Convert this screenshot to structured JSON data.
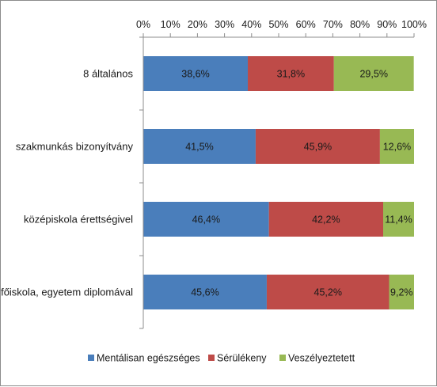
{
  "chart_data": {
    "type": "bar",
    "orientation": "horizontal",
    "stacked": "percent",
    "title": "",
    "xlabel": "",
    "ylabel": "",
    "xlim": [
      0,
      100
    ],
    "x_ticks": [
      "0%",
      "10%",
      "20%",
      "30%",
      "40%",
      "50%",
      "60%",
      "70%",
      "80%",
      "90%",
      "100%"
    ],
    "x_axis_position": "top",
    "grid": false,
    "legend_position": "bottom",
    "categories": [
      "8 általános",
      "szakmunkás bizonyítvány",
      "középiskola érettségivel",
      "főiskola, egyetem diplomával"
    ],
    "series": [
      {
        "name": "Mentálisan egészséges",
        "color": "#4a7ebb",
        "values": [
          38.6,
          41.5,
          46.4,
          45.6
        ],
        "labels": [
          "38,6%",
          "41,5%",
          "46,4%",
          "45,6%"
        ]
      },
      {
        "name": "Sérülékeny",
        "color": "#be4b48",
        "values": [
          31.8,
          45.9,
          42.2,
          45.2
        ],
        "labels": [
          "31,8%",
          "45,9%",
          "42,2%",
          "45,2%"
        ]
      },
      {
        "name": "Veszélyeztetett",
        "color": "#98b954",
        "values": [
          29.5,
          12.6,
          11.4,
          9.2
        ],
        "labels": [
          "29,5%",
          "12,6%",
          "11,4%",
          "9,2%"
        ]
      }
    ]
  }
}
